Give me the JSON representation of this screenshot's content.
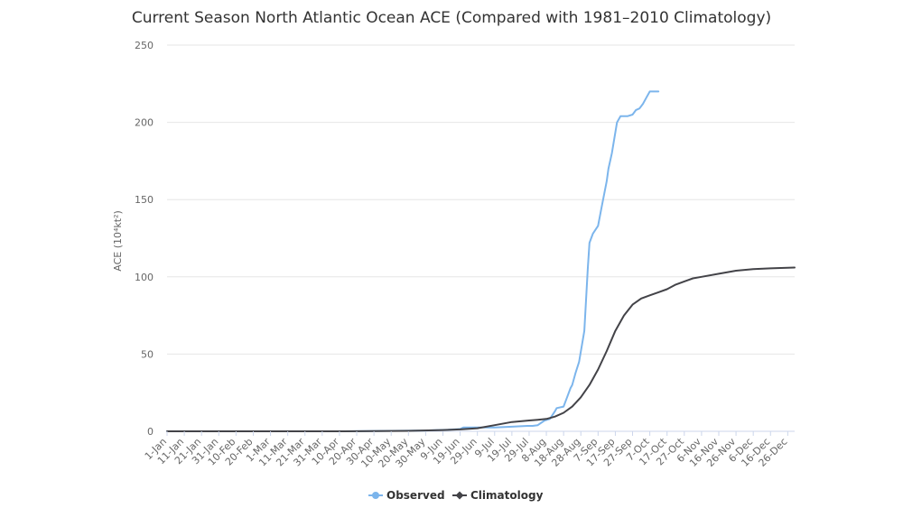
{
  "chart_data": {
    "type": "line",
    "title": "Current Season North Atlantic Ocean ACE (Compared with 1981–2010 Climatology)",
    "xlabel": "",
    "ylabel": "ACE (10⁴kt²)",
    "ylim": [
      0,
      250
    ],
    "y_ticks": [
      "0",
      "50",
      "100",
      "150",
      "200",
      "250"
    ],
    "x_range_days": [
      0,
      364
    ],
    "x_tick_labels": [
      "1-Jan",
      "11-Jan",
      "21-Jan",
      "31-Jan",
      "10-Feb",
      "20-Feb",
      "1-Mar",
      "11-Mar",
      "21-Mar",
      "31-Mar",
      "10-Apr",
      "20-Apr",
      "30-Apr",
      "10-May",
      "20-May",
      "30-May",
      "9-Jun",
      "19-Jun",
      "29-Jun",
      "9-Jul",
      "19-Jul",
      "29-Jul",
      "8-Aug",
      "18-Aug",
      "28-Aug",
      "7-Sep",
      "17-Sep",
      "27-Sep",
      "7-Oct",
      "17-Oct",
      "27-Oct",
      "6-Nov",
      "16-Nov",
      "26-Nov",
      "6-Dec",
      "16-Dec",
      "26-Dec"
    ],
    "grid": true,
    "legend_position": "bottom-center",
    "series": [
      {
        "name": "Observed",
        "color": "#7cb5ec",
        "x": [
          0,
          100,
          150,
          163,
          170,
          172,
          180,
          190,
          200,
          209,
          212,
          215,
          219,
          222,
          225,
          226,
          230,
          232,
          234,
          235,
          237,
          239,
          242,
          243,
          244,
          245,
          247,
          250,
          252,
          255,
          256,
          258,
          261,
          263,
          265,
          267,
          270,
          272,
          274,
          276,
          278,
          280,
          282,
          285
        ],
        "y": [
          0,
          0,
          0.5,
          1,
          1.5,
          2.5,
          2.5,
          2.5,
          3,
          3.5,
          3.5,
          4,
          7,
          8,
          13,
          15,
          16,
          22,
          28,
          30,
          38,
          45,
          65,
          85,
          105,
          122,
          128,
          133,
          145,
          162,
          170,
          180,
          200,
          204,
          204,
          204,
          205,
          208,
          209,
          212,
          216,
          220,
          220,
          220
        ]
      },
      {
        "name": "Climatology",
        "color": "#434348",
        "x": [
          0,
          100,
          140,
          160,
          170,
          180,
          190,
          200,
          210,
          215,
          220,
          225,
          230,
          235,
          240,
          245,
          250,
          255,
          260,
          265,
          270,
          275,
          280,
          285,
          290,
          295,
          300,
          305,
          310,
          320,
          330,
          340,
          350,
          364
        ],
        "y": [
          0,
          0,
          0.3,
          0.8,
          1.2,
          2,
          4,
          6,
          7,
          7.5,
          8,
          9.5,
          12,
          16,
          22,
          30,
          40,
          52,
          65,
          75,
          82,
          86,
          88,
          90,
          92,
          95,
          97,
          99,
          100,
          102,
          104,
          105,
          105.5,
          106
        ]
      }
    ]
  }
}
